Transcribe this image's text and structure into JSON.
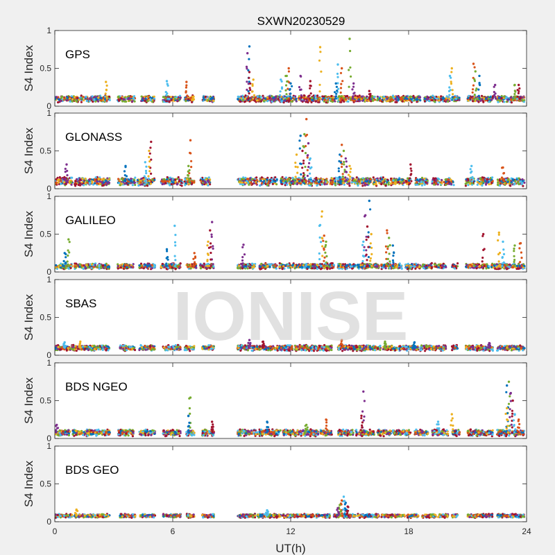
{
  "chart_data": {
    "type": "scatter",
    "title": "SXWN20230529",
    "xlabel": "UT(h)",
    "ylabel": "S4 Index",
    "xlim": [
      0,
      24
    ],
    "xticks": [
      "0",
      "6",
      "12",
      "18",
      "24"
    ],
    "ylim": [
      0,
      1
    ],
    "yticks": [
      "0",
      "0.5",
      "1"
    ],
    "grid": false,
    "watermark": "IONISE",
    "colors": [
      "#0072BD",
      "#D95319",
      "#EDB120",
      "#7E2F8E",
      "#77AC30",
      "#4DBEEE",
      "#A2142F"
    ],
    "panels": [
      {
        "name": "GPS",
        "base": 0.1,
        "spread": 0.07,
        "segments": [
          [
            0,
            2.8
          ],
          [
            3.2,
            4.1
          ],
          [
            4.4,
            5.1
          ],
          [
            5.5,
            6.4
          ],
          [
            6.6,
            7.1
          ],
          [
            7.5,
            8.1
          ],
          [
            9.3,
            12.3
          ],
          [
            12.4,
            13.5
          ],
          [
            13.6,
            14.3
          ],
          [
            14.4,
            16.3
          ],
          [
            16.4,
            18.6
          ],
          [
            18.8,
            19.4
          ],
          [
            19.5,
            20.1
          ],
          [
            20.2,
            20.6
          ],
          [
            21.0,
            22.3
          ],
          [
            22.5,
            23.9
          ]
        ],
        "spikes": [
          [
            9.9,
            0.79
          ],
          [
            9.8,
            0.7
          ],
          [
            9.9,
            0.45
          ],
          [
            10.1,
            0.35
          ],
          [
            11.5,
            0.35
          ],
          [
            11.9,
            0.5
          ],
          [
            11.8,
            0.4
          ],
          [
            12.0,
            0.3
          ],
          [
            12.5,
            0.4
          ],
          [
            13.0,
            0.33
          ],
          [
            13.5,
            0.78
          ],
          [
            14.4,
            0.55
          ],
          [
            14.6,
            0.5
          ],
          [
            15.0,
            0.89
          ],
          [
            14.3,
            0.3
          ],
          [
            15.2,
            0.3
          ],
          [
            16.0,
            0.2
          ],
          [
            20.2,
            0.5
          ],
          [
            20.1,
            0.4
          ],
          [
            21.3,
            0.56
          ],
          [
            21.4,
            0.46
          ],
          [
            21.6,
            0.4
          ],
          [
            22.4,
            0.28
          ],
          [
            23.6,
            0.28
          ],
          [
            2.6,
            0.32
          ],
          [
            5.7,
            0.33
          ],
          [
            6.7,
            0.32
          ],
          [
            23.4,
            0.28
          ]
        ]
      },
      {
        "name": "GLONASS",
        "base": 0.1,
        "spread": 0.09,
        "segments": [
          [
            0,
            0.9
          ],
          [
            1.0,
            2.8
          ],
          [
            3.2,
            4.1
          ],
          [
            4.2,
            5.1
          ],
          [
            5.4,
            6.5
          ],
          [
            6.6,
            7.1
          ],
          [
            7.4,
            8.0
          ],
          [
            9.3,
            10.3
          ],
          [
            10.4,
            11.3
          ],
          [
            11.5,
            12.8
          ],
          [
            12.9,
            13.9
          ],
          [
            14.0,
            14.3
          ],
          [
            14.4,
            15.0
          ],
          [
            15.1,
            16.1
          ],
          [
            16.2,
            17.0
          ],
          [
            17.1,
            18.1
          ],
          [
            18.3,
            19.0
          ],
          [
            19.2,
            19.7
          ],
          [
            19.8,
            20.3
          ],
          [
            20.9,
            21.4
          ],
          [
            21.5,
            22.3
          ],
          [
            22.5,
            23.9
          ]
        ],
        "spikes": [
          [
            12.8,
            0.92
          ],
          [
            12.7,
            0.72
          ],
          [
            12.5,
            0.7
          ],
          [
            12.9,
            0.6
          ],
          [
            12.6,
            0.5
          ],
          [
            12.3,
            0.45
          ],
          [
            13.0,
            0.4
          ],
          [
            14.6,
            0.58
          ],
          [
            14.7,
            0.5
          ],
          [
            14.5,
            0.45
          ],
          [
            14.8,
            0.4
          ],
          [
            4.9,
            0.62
          ],
          [
            4.8,
            0.5
          ],
          [
            4.6,
            0.35
          ],
          [
            6.9,
            0.64
          ],
          [
            6.8,
            0.3
          ],
          [
            3.6,
            0.3
          ],
          [
            0.6,
            0.32
          ],
          [
            18.1,
            0.32
          ],
          [
            15.0,
            0.3
          ],
          [
            21.2,
            0.3
          ],
          [
            22.8,
            0.28
          ]
        ]
      },
      {
        "name": "GALILEO",
        "base": 0.08,
        "spread": 0.06,
        "segments": [
          [
            0,
            0.9
          ],
          [
            1.0,
            2.8
          ],
          [
            3.2,
            4.0
          ],
          [
            4.3,
            5.1
          ],
          [
            5.4,
            6.4
          ],
          [
            6.7,
            7.2
          ],
          [
            7.4,
            8.1
          ],
          [
            9.3,
            10.2
          ],
          [
            10.4,
            11.3
          ],
          [
            11.4,
            13.6
          ],
          [
            13.7,
            14.2
          ],
          [
            14.4,
            15.3
          ],
          [
            15.4,
            16.5
          ],
          [
            16.6,
            17.7
          ],
          [
            17.8,
            18.6
          ],
          [
            18.7,
            19.2
          ],
          [
            19.3,
            19.9
          ],
          [
            20.2,
            20.5
          ],
          [
            20.9,
            22.1
          ],
          [
            22.2,
            23.9
          ]
        ],
        "spikes": [
          [
            13.6,
            0.8
          ],
          [
            13.5,
            0.62
          ],
          [
            13.7,
            0.48
          ],
          [
            13.8,
            0.4
          ],
          [
            16.0,
            0.94
          ],
          [
            15.8,
            0.75
          ],
          [
            15.9,
            0.6
          ],
          [
            16.1,
            0.5
          ],
          [
            15.7,
            0.4
          ],
          [
            16.9,
            0.55
          ],
          [
            17.0,
            0.45
          ],
          [
            17.2,
            0.35
          ],
          [
            8.0,
            0.66
          ],
          [
            7.9,
            0.55
          ],
          [
            7.8,
            0.4
          ],
          [
            6.1,
            0.61
          ],
          [
            7.1,
            0.25
          ],
          [
            0.7,
            0.43
          ],
          [
            0.5,
            0.25
          ],
          [
            9.6,
            0.36
          ],
          [
            21.8,
            0.5
          ],
          [
            22.6,
            0.52
          ],
          [
            22.8,
            0.4
          ],
          [
            23.7,
            0.38
          ],
          [
            23.4,
            0.35
          ],
          [
            5.7,
            0.3
          ]
        ]
      },
      {
        "name": "SBAS",
        "base": 0.1,
        "spread": 0.06,
        "segments": [
          [
            0,
            2.8
          ],
          [
            3.3,
            4.1
          ],
          [
            4.3,
            5.1
          ],
          [
            5.5,
            6.4
          ],
          [
            6.6,
            7.1
          ],
          [
            7.5,
            8.1
          ],
          [
            9.3,
            12.1
          ],
          [
            12.2,
            14.1
          ],
          [
            14.4,
            16.6
          ],
          [
            16.7,
            18.5
          ],
          [
            18.6,
            19.9
          ],
          [
            20.2,
            20.5
          ],
          [
            20.9,
            22.3
          ],
          [
            22.5,
            23.9
          ]
        ],
        "spikes": [
          [
            9.9,
            0.2
          ],
          [
            10.6,
            0.18
          ],
          [
            1.3,
            0.18
          ],
          [
            0.5,
            0.17
          ],
          [
            14.6,
            0.2
          ],
          [
            16.8,
            0.18
          ],
          [
            18.3,
            0.17
          ],
          [
            22.1,
            0.16
          ]
        ]
      },
      {
        "name": "BDS NGEO",
        "base": 0.08,
        "spread": 0.07,
        "segments": [
          [
            0,
            0.8
          ],
          [
            0.9,
            2.8
          ],
          [
            3.2,
            4.0
          ],
          [
            4.3,
            5.1
          ],
          [
            5.5,
            6.4
          ],
          [
            6.7,
            7.1
          ],
          [
            7.5,
            8.1
          ],
          [
            9.3,
            10.3
          ],
          [
            10.4,
            11.5
          ],
          [
            11.6,
            13.4
          ],
          [
            13.5,
            14.1
          ],
          [
            14.4,
            15.2
          ],
          [
            15.3,
            16.3
          ],
          [
            16.4,
            17.1
          ],
          [
            17.2,
            18.1
          ],
          [
            18.3,
            19.0
          ],
          [
            19.2,
            20.0
          ],
          [
            20.2,
            20.6
          ],
          [
            21.0,
            22.3
          ],
          [
            22.5,
            23.9
          ]
        ],
        "spikes": [
          [
            23.1,
            0.75
          ],
          [
            23.0,
            0.7
          ],
          [
            23.2,
            0.6
          ],
          [
            23.3,
            0.5
          ],
          [
            23.0,
            0.4
          ],
          [
            23.4,
            0.32
          ],
          [
            23.6,
            0.25
          ],
          [
            6.9,
            0.54
          ],
          [
            6.8,
            0.3
          ],
          [
            15.7,
            0.62
          ],
          [
            15.6,
            0.3
          ],
          [
            20.2,
            0.32
          ],
          [
            19.5,
            0.22
          ],
          [
            13.8,
            0.25
          ],
          [
            12.8,
            0.18
          ],
          [
            10.8,
            0.22
          ],
          [
            0.1,
            0.18
          ],
          [
            8.0,
            0.22
          ]
        ]
      },
      {
        "name": "BDS GEO",
        "base": 0.08,
        "spread": 0.04,
        "segments": [
          [
            0,
            0.9
          ],
          [
            1.0,
            2.8
          ],
          [
            3.3,
            4.1
          ],
          [
            4.3,
            5.1
          ],
          [
            5.5,
            6.4
          ],
          [
            6.7,
            7.1
          ],
          [
            7.5,
            8.1
          ],
          [
            9.3,
            10.2
          ],
          [
            10.3,
            11.5
          ],
          [
            11.6,
            13.2
          ],
          [
            13.3,
            14.0
          ],
          [
            14.2,
            15.3
          ],
          [
            15.4,
            16.5
          ],
          [
            16.6,
            17.8
          ],
          [
            17.9,
            18.5
          ],
          [
            18.7,
            19.4
          ],
          [
            19.5,
            20.0
          ],
          [
            20.2,
            20.5
          ],
          [
            21.0,
            22.3
          ],
          [
            22.5,
            23.9
          ]
        ],
        "spikes": [
          [
            14.7,
            0.33
          ],
          [
            14.6,
            0.28
          ],
          [
            14.5,
            0.22
          ],
          [
            14.8,
            0.25
          ],
          [
            14.4,
            0.18
          ],
          [
            14.9,
            0.2
          ],
          [
            1.1,
            0.16
          ],
          [
            10.8,
            0.15
          ]
        ]
      }
    ]
  }
}
